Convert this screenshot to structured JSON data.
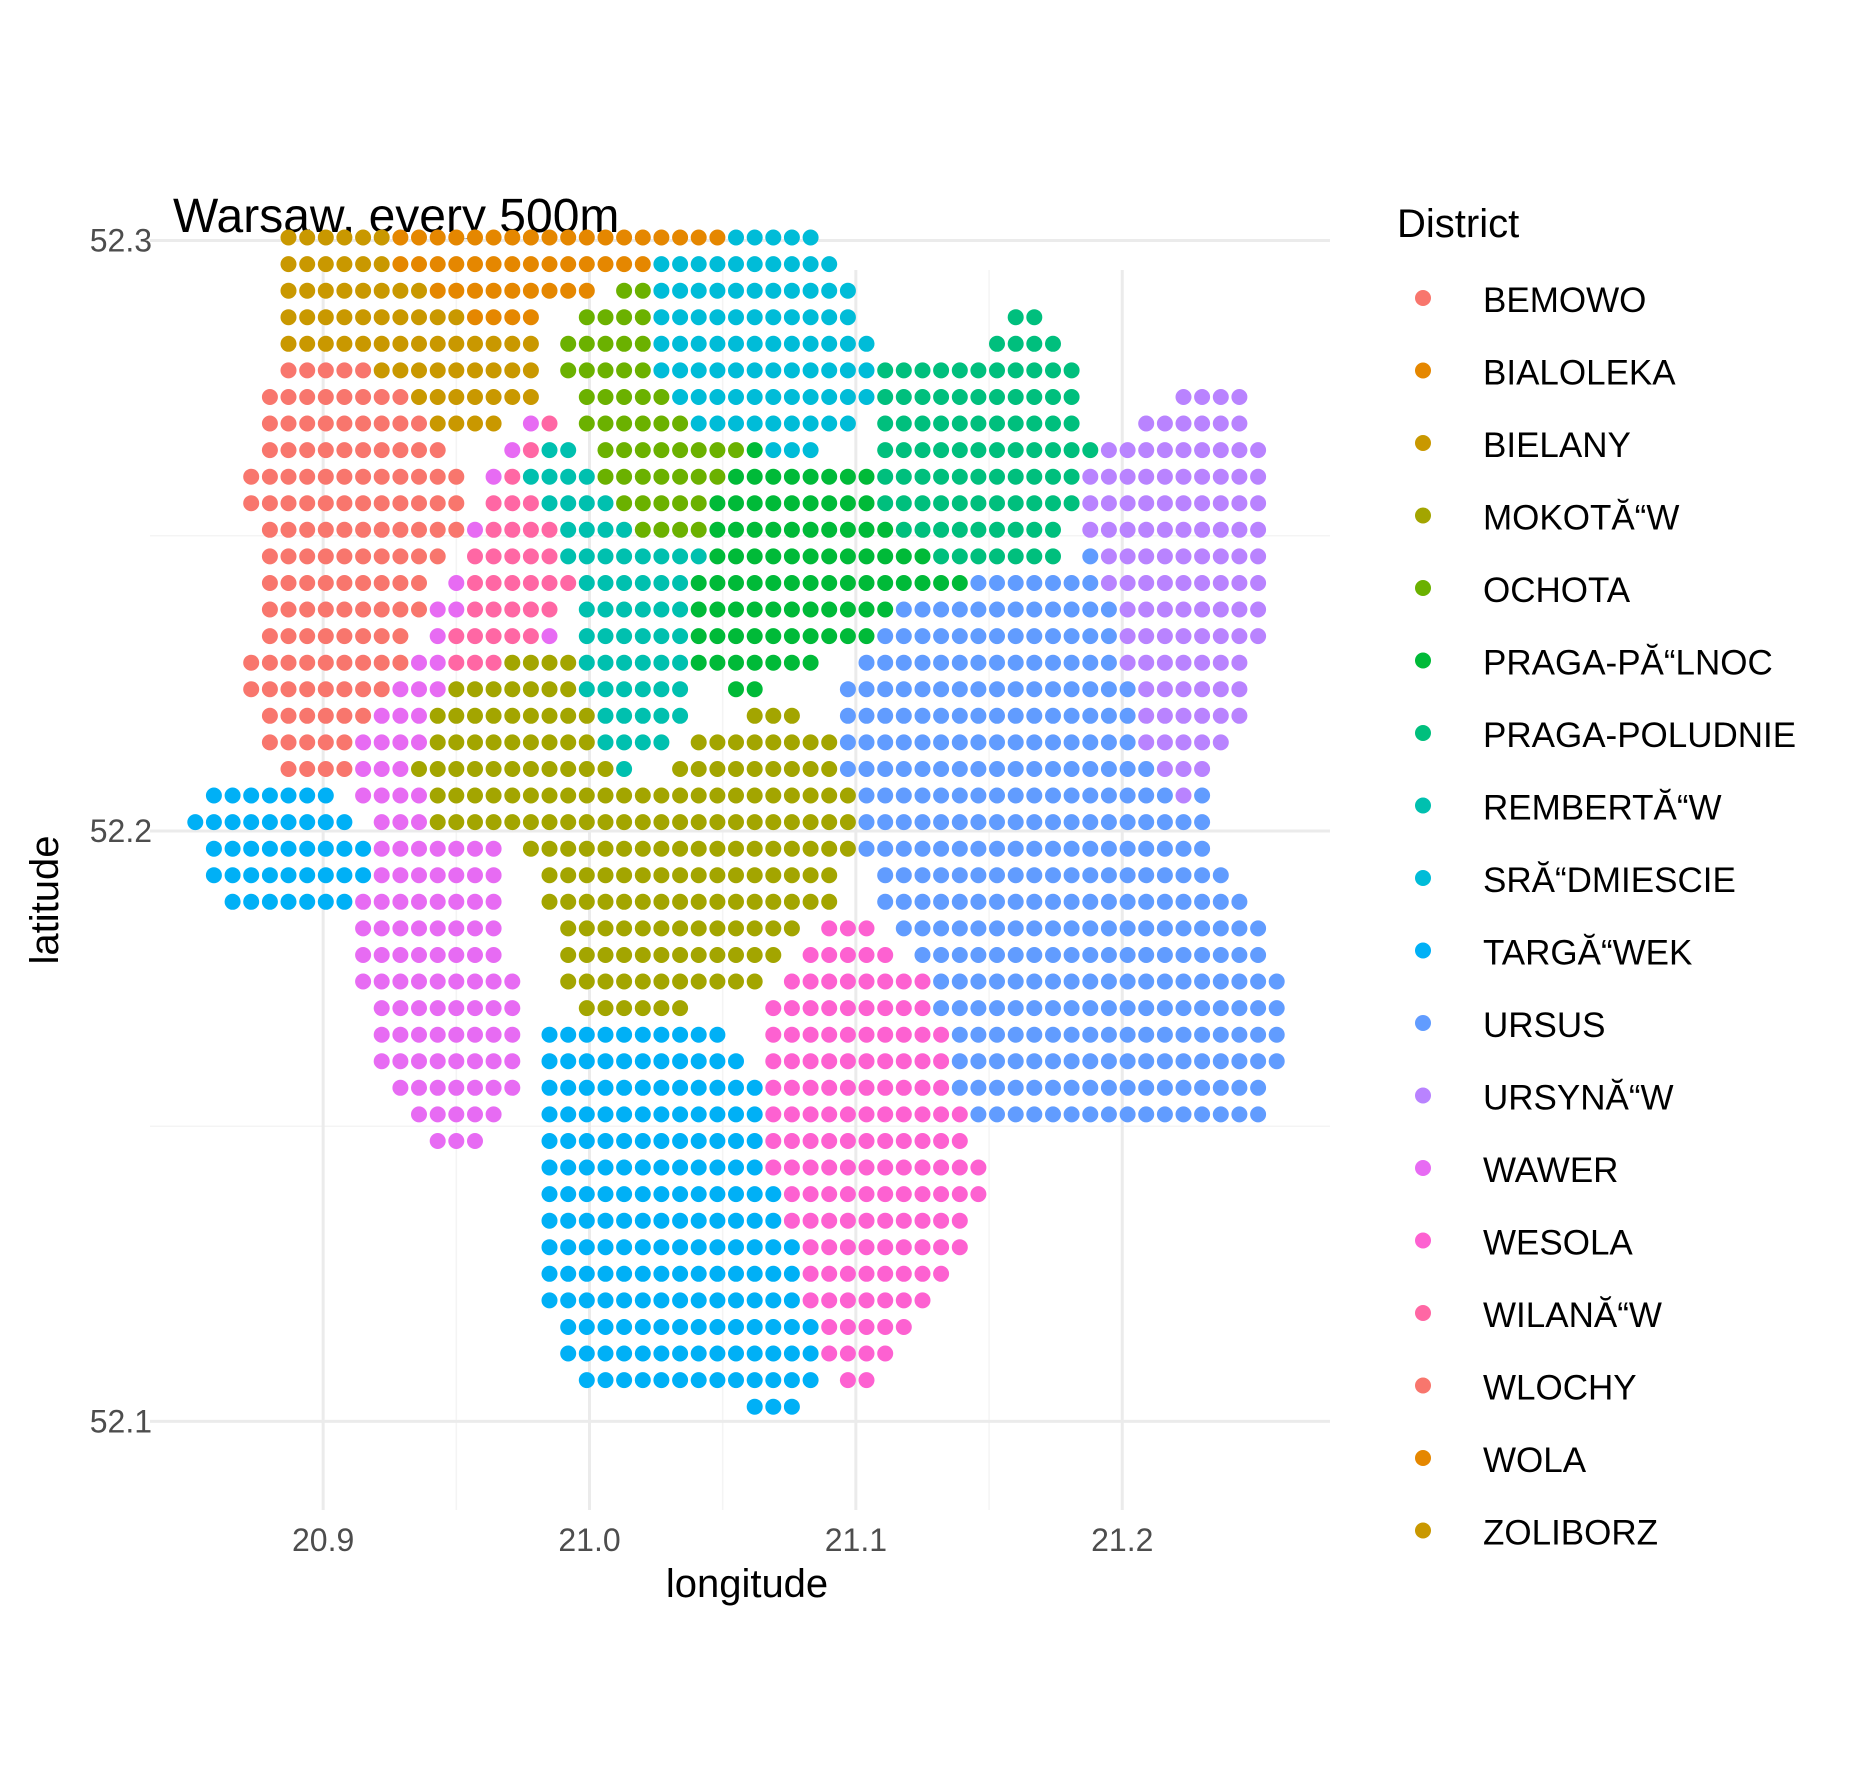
{
  "chart_data": {
    "type": "scatter",
    "title": "Warsaw, every 500m",
    "xlabel": "longitude",
    "ylabel": "latitude",
    "xlim": [
      20.835,
      21.278
    ],
    "ylim": [
      52.085,
      52.295
    ],
    "x_ticks": [
      "20.9",
      "21.0",
      "21.1",
      "21.2"
    ],
    "x_tick_values": [
      20.9,
      21.0,
      21.1,
      21.2
    ],
    "y_ticks": [
      "52.1",
      "52.2",
      "52.3"
    ],
    "y_tick_values": [
      52.1,
      52.2,
      52.3
    ],
    "grid": true,
    "legend": {
      "title": "District",
      "placement": "right",
      "entries": [
        {
          "label": "BEMOWO",
          "color": "#F8766D"
        },
        {
          "label": "BIALOLEKA",
          "color": "#E58700"
        },
        {
          "label": "BIELANY",
          "color": "#C99800"
        },
        {
          "label": "MOKOTĂ“W",
          "color": "#A3A500"
        },
        {
          "label": "OCHOTA",
          "color": "#6BB100"
        },
        {
          "label": "PRAGA-PĂ“LNOC",
          "color": "#00BA38"
        },
        {
          "label": "PRAGA-POLUDNIE",
          "color": "#00BF7D"
        },
        {
          "label": "REMBERTĂ“W",
          "color": "#00C0AF"
        },
        {
          "label": "SRĂ“DMIESCIE",
          "color": "#00BCD8"
        },
        {
          "label": "TARGĂ“WEK",
          "color": "#00B0F6"
        },
        {
          "label": "URSUS",
          "color": "#619CFF"
        },
        {
          "label": "URSYNĂ“W",
          "color": "#B983FF"
        },
        {
          "label": "WAWER",
          "color": "#E76BF3"
        },
        {
          "label": "WESOLA",
          "color": "#FD61D1"
        },
        {
          "label": "WILANĂ“W",
          "color": "#FF67A4"
        },
        {
          "label": "WLOCHY",
          "color": "#F8766D"
        },
        {
          "label": "WOLA",
          "color": "#E58700"
        },
        {
          "label": "ZOLIBORZ",
          "color": "#C99800"
        }
      ]
    },
    "grid_step": {
      "lon": 0.007,
      "lat": 0.0045
    },
    "regions": [
      {
        "color": "#E58700",
        "poly": [
          [
            20.92,
            52.32
          ],
          [
            20.935,
            52.345
          ],
          [
            20.945,
            52.357
          ],
          [
            20.96,
            52.363
          ],
          [
            20.97,
            52.358
          ],
          [
            21.0,
            52.357
          ],
          [
            21.02,
            52.355
          ],
          [
            21.04,
            52.359
          ],
          [
            21.07,
            52.36
          ],
          [
            21.085,
            52.352
          ],
          [
            21.092,
            52.33
          ],
          [
            21.09,
            52.322
          ],
          [
            21.075,
            52.31
          ],
          [
            21.06,
            52.302
          ],
          [
            21.04,
            52.299
          ],
          [
            21.02,
            52.296
          ],
          [
            21.0,
            52.29
          ],
          [
            20.98,
            52.287
          ],
          [
            20.96,
            52.286
          ],
          [
            20.94,
            52.29
          ],
          [
            20.925,
            52.297
          ]
        ]
      },
      {
        "color": "#00BCD8",
        "poly": [
          [
            21.02,
            52.296
          ],
          [
            21.04,
            52.299
          ],
          [
            21.06,
            52.302
          ],
          [
            21.075,
            52.31
          ],
          [
            21.095,
            52.296
          ],
          [
            21.1,
            52.288
          ],
          [
            21.11,
            52.282
          ],
          [
            21.105,
            52.27
          ],
          [
            21.08,
            52.262
          ],
          [
            21.06,
            52.264
          ],
          [
            21.045,
            52.268
          ],
          [
            21.03,
            52.27
          ],
          [
            21.02,
            52.278
          ]
        ]
      },
      {
        "color": "#C99800",
        "poly": [
          [
            20.88,
            52.288
          ],
          [
            20.885,
            52.305
          ],
          [
            20.9,
            52.318
          ],
          [
            20.92,
            52.32
          ],
          [
            20.925,
            52.297
          ],
          [
            20.94,
            52.29
          ],
          [
            20.96,
            52.286
          ],
          [
            20.98,
            52.287
          ],
          [
            20.98,
            52.272
          ],
          [
            20.96,
            52.268
          ],
          [
            20.945,
            52.268
          ],
          [
            20.93,
            52.275
          ],
          [
            20.91,
            52.28
          ],
          [
            20.89,
            52.28
          ]
        ]
      },
      {
        "color": "#F8766D",
        "poly": [
          [
            20.87,
            52.258
          ],
          [
            20.88,
            52.278
          ],
          [
            20.89,
            52.28
          ],
          [
            20.91,
            52.28
          ],
          [
            20.93,
            52.275
          ],
          [
            20.945,
            52.268
          ],
          [
            20.955,
            52.258
          ],
          [
            20.95,
            52.248
          ],
          [
            20.94,
            52.24
          ],
          [
            20.93,
            52.225
          ],
          [
            20.92,
            52.21
          ],
          [
            20.895,
            52.208
          ],
          [
            20.875,
            52.212
          ],
          [
            20.872,
            52.228
          ],
          [
            20.88,
            52.245
          ]
        ]
      },
      {
        "color": "#6BB100",
        "poly": [
          [
            20.99,
            52.282
          ],
          [
            21.0,
            52.288
          ],
          [
            21.02,
            52.296
          ],
          [
            21.03,
            52.27
          ],
          [
            21.045,
            52.268
          ],
          [
            21.06,
            52.265
          ],
          [
            21.06,
            52.252
          ],
          [
            21.04,
            52.248
          ],
          [
            21.02,
            52.25
          ],
          [
            21.005,
            52.258
          ],
          [
            20.995,
            52.27
          ]
        ]
      },
      {
        "color": "#00B0F6",
        "poly": [
          [
            20.85,
            52.202
          ],
          [
            20.865,
            52.21
          ],
          [
            20.885,
            52.209
          ],
          [
            20.905,
            52.208
          ],
          [
            20.92,
            52.198
          ],
          [
            20.915,
            52.188
          ],
          [
            20.9,
            52.184
          ],
          [
            20.88,
            52.184
          ],
          [
            20.86,
            52.188
          ]
        ]
      },
      {
        "color": "#E76BF3",
        "poly": [
          [
            20.91,
            52.18
          ],
          [
            20.92,
            52.198
          ],
          [
            20.91,
            52.214
          ],
          [
            20.93,
            52.225
          ],
          [
            20.95,
            52.246
          ],
          [
            20.96,
            52.258
          ],
          [
            20.975,
            52.27
          ],
          [
            20.99,
            52.272
          ],
          [
            20.995,
            52.258
          ],
          [
            20.99,
            52.238
          ],
          [
            20.99,
            52.22
          ],
          [
            20.97,
            52.21
          ],
          [
            20.965,
            52.195
          ],
          [
            20.97,
            52.18
          ],
          [
            20.975,
            52.16
          ],
          [
            20.96,
            52.143
          ],
          [
            20.94,
            52.148
          ],
          [
            20.92,
            52.162
          ]
        ]
      },
      {
        "color": "#FF67A4",
        "poly": [
          [
            20.945,
            52.225
          ],
          [
            20.955,
            52.245
          ],
          [
            20.965,
            52.258
          ],
          [
            20.975,
            52.268
          ],
          [
            20.99,
            52.272
          ],
          [
            20.995,
            52.258
          ],
          [
            20.992,
            52.24
          ],
          [
            20.98,
            52.232
          ],
          [
            20.965,
            52.228
          ]
        ]
      },
      {
        "color": "#00C0AF",
        "poly": [
          [
            20.975,
            52.258
          ],
          [
            20.99,
            52.27
          ],
          [
            21.005,
            52.258
          ],
          [
            21.02,
            52.25
          ],
          [
            21.04,
            52.248
          ],
          [
            21.06,
            52.252
          ],
          [
            21.06,
            52.248
          ],
          [
            21.04,
            52.238
          ],
          [
            21.04,
            52.222
          ],
          [
            21.03,
            52.212
          ],
          [
            21.01,
            52.21
          ],
          [
            21.0,
            52.218
          ],
          [
            20.995,
            52.238
          ],
          [
            20.99,
            52.252
          ]
        ]
      },
      {
        "color": "#00BA38",
        "poly": [
          [
            21.045,
            52.258
          ],
          [
            21.06,
            52.265
          ],
          [
            21.08,
            52.262
          ],
          [
            21.105,
            52.26
          ],
          [
            21.13,
            52.258
          ],
          [
            21.15,
            52.25
          ],
          [
            21.14,
            52.24
          ],
          [
            21.12,
            52.238
          ],
          [
            21.1,
            52.23
          ],
          [
            21.08,
            52.228
          ],
          [
            21.06,
            52.222
          ],
          [
            21.04,
            52.228
          ],
          [
            21.04,
            52.24
          ],
          [
            21.042,
            52.25
          ]
        ]
      },
      {
        "color": "#00BF7D",
        "poly": [
          [
            21.105,
            52.26
          ],
          [
            21.11,
            52.28
          ],
          [
            21.13,
            52.282
          ],
          [
            21.15,
            52.282
          ],
          [
            21.165,
            52.29
          ],
          [
            21.18,
            52.28
          ],
          [
            21.19,
            52.265
          ],
          [
            21.18,
            52.25
          ],
          [
            21.17,
            52.242
          ],
          [
            21.15,
            52.242
          ],
          [
            21.13,
            52.246
          ],
          [
            21.115,
            52.252
          ]
        ]
      },
      {
        "color": "#A3A500",
        "poly": [
          [
            20.935,
            52.21
          ],
          [
            20.945,
            52.225
          ],
          [
            20.965,
            52.228
          ],
          [
            20.98,
            52.232
          ],
          [
            20.995,
            52.232
          ],
          [
            21.0,
            52.218
          ],
          [
            21.01,
            52.208
          ],
          [
            21.03,
            52.21
          ],
          [
            21.045,
            52.218
          ],
          [
            21.06,
            52.22
          ],
          [
            21.08,
            52.22
          ],
          [
            21.1,
            52.212
          ],
          [
            21.1,
            52.2
          ],
          [
            21.095,
            52.19
          ],
          [
            21.08,
            52.182
          ],
          [
            21.06,
            52.172
          ],
          [
            21.04,
            52.17
          ],
          [
            21.02,
            52.168
          ],
          [
            21.0,
            52.165
          ],
          [
            20.99,
            52.172
          ],
          [
            20.985,
            52.188
          ],
          [
            20.97,
            52.198
          ],
          [
            20.955,
            52.2
          ],
          [
            20.94,
            52.2
          ]
        ]
      },
      {
        "color": "#619CFF",
        "poly": [
          [
            21.095,
            52.225
          ],
          [
            21.12,
            52.24
          ],
          [
            21.15,
            52.243
          ],
          [
            21.18,
            52.245
          ],
          [
            21.195,
            52.248
          ],
          [
            21.21,
            52.236
          ],
          [
            21.225,
            52.228
          ],
          [
            21.23,
            52.21
          ],
          [
            21.235,
            52.198
          ],
          [
            21.245,
            52.19
          ],
          [
            21.255,
            52.184
          ],
          [
            21.262,
            52.172
          ],
          [
            21.258,
            52.16
          ],
          [
            21.25,
            52.15
          ],
          [
            21.24,
            52.15
          ],
          [
            21.22,
            52.152
          ],
          [
            21.2,
            52.152
          ],
          [
            21.18,
            52.148
          ],
          [
            21.16,
            52.15
          ],
          [
            21.14,
            52.152
          ],
          [
            21.13,
            52.165
          ],
          [
            21.12,
            52.178
          ],
          [
            21.11,
            52.188
          ],
          [
            21.1,
            52.2
          ],
          [
            21.095,
            52.212
          ]
        ]
      },
      {
        "color": "#B983FF",
        "poly": [
          [
            21.185,
            52.26
          ],
          [
            21.195,
            52.268
          ],
          [
            21.21,
            52.27
          ],
          [
            21.225,
            52.275
          ],
          [
            21.24,
            52.278
          ],
          [
            21.25,
            52.27
          ],
          [
            21.255,
            52.255
          ],
          [
            21.252,
            52.238
          ],
          [
            21.25,
            52.224
          ],
          [
            21.24,
            52.212
          ],
          [
            21.225,
            52.205
          ],
          [
            21.21,
            52.212
          ],
          [
            21.2,
            52.232
          ],
          [
            21.19,
            52.245
          ]
        ]
      },
      {
        "color": "#FD61D1",
        "poly": [
          [
            21.065,
            52.168
          ],
          [
            21.08,
            52.182
          ],
          [
            21.095,
            52.188
          ],
          [
            21.11,
            52.182
          ],
          [
            21.125,
            52.175
          ],
          [
            21.135,
            52.162
          ],
          [
            21.145,
            52.148
          ],
          [
            21.15,
            52.138
          ],
          [
            21.14,
            52.128
          ],
          [
            21.125,
            52.12
          ],
          [
            21.11,
            52.11
          ],
          [
            21.1,
            52.104
          ],
          [
            21.09,
            52.108
          ],
          [
            21.08,
            52.122
          ],
          [
            21.07,
            52.135
          ],
          [
            21.062,
            52.15
          ]
        ]
      },
      {
        "color": "#00B0F6",
        "poly": [
          [
            20.98,
            52.17
          ],
          [
            20.99,
            52.168
          ],
          [
            21.01,
            52.166
          ],
          [
            21.03,
            52.166
          ],
          [
            21.05,
            52.168
          ],
          [
            21.062,
            52.16
          ],
          [
            21.07,
            52.14
          ],
          [
            21.08,
            52.125
          ],
          [
            21.088,
            52.11
          ],
          [
            21.08,
            52.1
          ],
          [
            21.07,
            52.102
          ],
          [
            21.05,
            52.103
          ],
          [
            21.03,
            52.104
          ],
          [
            21.01,
            52.104
          ],
          [
            20.995,
            52.106
          ],
          [
            20.985,
            52.12
          ],
          [
            20.98,
            52.14
          ],
          [
            20.98,
            52.158
          ]
        ]
      }
    ]
  }
}
